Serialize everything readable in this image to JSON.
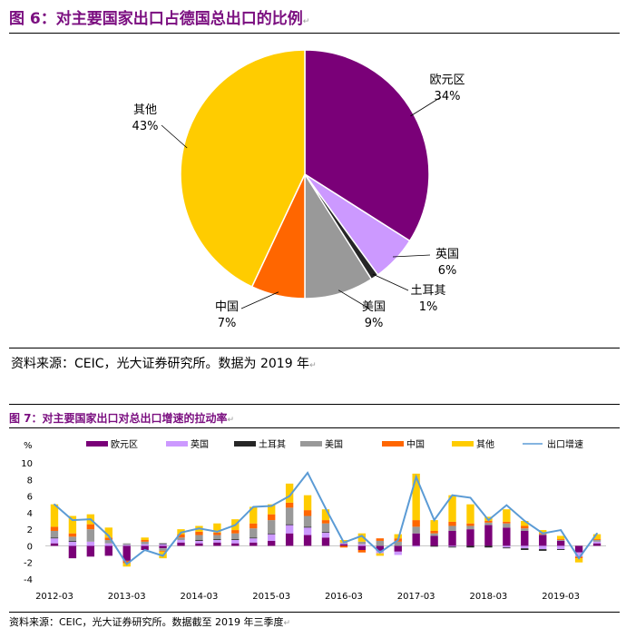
{
  "figure6": {
    "title": "图 6：对主要国家出口占德国总出口的比例",
    "source": "资料来源：CEIC，光大证券研究所。数据为 2019 年"
  },
  "figure7": {
    "title": "图 7：对主要国家出口对总出口增速的拉动率",
    "source": "资料来源：CEIC，光大证券研究所。数据截至 2019 年三季度"
  },
  "colors": {
    "title": "#7b0f80",
    "euro": "#7a0078",
    "uk": "#cc99ff",
    "turkey": "#262626",
    "usa": "#999999",
    "china": "#ff6600",
    "other": "#ffcc00",
    "line": "#5b9bd5"
  },
  "chart_data": [
    {
      "type": "pie",
      "title": "对主要国家出口占德国总出口的比例",
      "slices": [
        {
          "name": "欧元区",
          "value": 34,
          "label": "34%"
        },
        {
          "name": "英国",
          "value": 6,
          "label": "6%"
        },
        {
          "name": "土耳其",
          "value": 1,
          "label": "1%"
        },
        {
          "name": "美国",
          "value": 9,
          "label": "9%"
        },
        {
          "name": "中国",
          "value": 7,
          "label": "7%"
        },
        {
          "name": "其他",
          "value": 43,
          "label": "43%"
        }
      ]
    },
    {
      "type": "bar",
      "stacked": true,
      "title": "对主要国家出口对总出口增速的拉动率",
      "ylabel": "%",
      "ylim": [
        -4,
        10
      ],
      "yticks": [
        -4,
        -2,
        0,
        2,
        4,
        6,
        8,
        10
      ],
      "xtick_labels": [
        "2012-03",
        "2013-03",
        "2014-03",
        "2015-03",
        "2016-03",
        "2017-03",
        "2018-03",
        "2019-03"
      ],
      "legend": [
        "欧元区",
        "英国",
        "土耳其",
        "美国",
        "中国",
        "其他",
        "出口增速"
      ],
      "categories": [
        "2012-03",
        "2012-06",
        "2012-09",
        "2012-12",
        "2013-03",
        "2013-06",
        "2013-09",
        "2013-12",
        "2014-03",
        "2014-06",
        "2014-09",
        "2014-12",
        "2015-03",
        "2015-06",
        "2015-09",
        "2015-12",
        "2016-03",
        "2016-06",
        "2016-09",
        "2016-12",
        "2017-03",
        "2017-06",
        "2017-09",
        "2017-12",
        "2018-03",
        "2018-06",
        "2018-09",
        "2018-12",
        "2019-03",
        "2019-06",
        "2019-09"
      ],
      "series": [
        {
          "name": "欧元区",
          "kind": "bar",
          "values": [
            0.3,
            -1.5,
            -1.3,
            -1.2,
            -1.8,
            -0.5,
            -0.3,
            0.4,
            0.3,
            0.4,
            0.3,
            0.4,
            0.6,
            1.5,
            1.3,
            1.0,
            0.2,
            -0.5,
            -0.6,
            -0.7,
            1.5,
            1.2,
            1.8,
            2.0,
            2.5,
            2.2,
            1.8,
            1.3,
            0.6,
            -0.8,
            0.3
          ]
        },
        {
          "name": "英国",
          "kind": "bar",
          "values": [
            0.6,
            0.5,
            0.5,
            0.3,
            0.1,
            0.2,
            0.2,
            0.3,
            0.3,
            0.3,
            0.4,
            0.5,
            0.8,
            1.0,
            0.9,
            0.6,
            0.1,
            0.2,
            -0.3,
            -0.4,
            -0.1,
            0.0,
            -0.1,
            0.0,
            0.0,
            -0.2,
            -0.3,
            -0.4,
            -0.4,
            -0.5,
            0.2
          ]
        },
        {
          "name": "土耳其",
          "kind": "bar",
          "values": [
            0.1,
            0.1,
            0.0,
            0.0,
            0.0,
            0.0,
            0.1,
            0.0,
            0.1,
            0.1,
            0.1,
            0.1,
            0.1,
            0.1,
            0.1,
            0.1,
            0.0,
            0.0,
            0.0,
            0.0,
            0.0,
            -0.1,
            -0.1,
            -0.2,
            -0.2,
            -0.1,
            -0.2,
            -0.2,
            -0.1,
            0.0,
            0.0
          ]
        },
        {
          "name": "美国",
          "kind": "bar",
          "values": [
            0.8,
            0.5,
            1.5,
            0.4,
            0.2,
            0.3,
            -0.3,
            0.3,
            0.6,
            0.5,
            0.7,
            1.1,
            1.6,
            2.0,
            1.3,
            1.0,
            0.1,
            0.3,
            0.6,
            0.5,
            0.8,
            0.3,
            0.6,
            0.4,
            0.3,
            0.5,
            0.3,
            0.1,
            0.1,
            0.0,
            0.2
          ]
        },
        {
          "name": "中国",
          "kind": "bar",
          "values": [
            0.5,
            0.4,
            0.6,
            0.3,
            -0.3,
            0.2,
            -0.1,
            0.4,
            0.4,
            0.3,
            0.4,
            0.6,
            0.7,
            0.6,
            0.7,
            0.4,
            -0.2,
            -0.3,
            0.3,
            0.4,
            0.8,
            0.3,
            0.5,
            0.3,
            0.2,
            0.2,
            0.3,
            0.1,
            0.1,
            -0.2,
            0.1
          ]
        },
        {
          "name": "其他",
          "kind": "bar",
          "values": [
            2.7,
            2.1,
            1.2,
            1.2,
            -0.4,
            0.3,
            -0.8,
            0.6,
            0.7,
            1.1,
            1.3,
            2.0,
            1.2,
            2.3,
            1.8,
            1.3,
            0.3,
            1.0,
            -0.3,
            0.5,
            5.6,
            1.3,
            3.2,
            2.3,
            0.5,
            1.5,
            0.6,
            0.4,
            0.4,
            -0.5,
            0.6
          ]
        },
        {
          "name": "出口增速",
          "kind": "line",
          "values": [
            5.0,
            3.1,
            3.2,
            1.2,
            -2.2,
            -0.5,
            -1.2,
            1.6,
            2.1,
            1.7,
            2.5,
            4.7,
            4.8,
            6.0,
            8.8,
            4.5,
            0.4,
            1.2,
            -0.8,
            0.7,
            8.3,
            3.1,
            6.1,
            5.8,
            3.1,
            4.9,
            3.0,
            1.5,
            1.9,
            -1.5,
            1.5
          ]
        }
      ]
    }
  ]
}
